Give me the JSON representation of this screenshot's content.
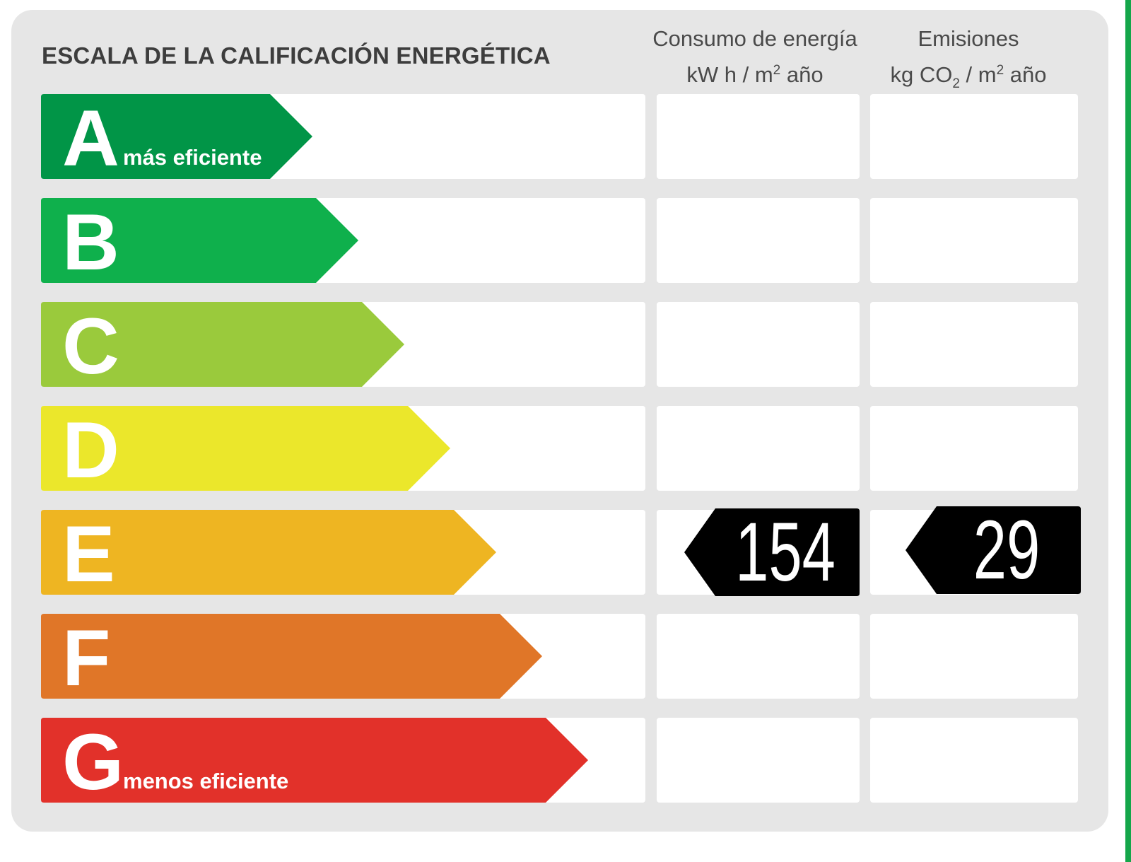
{
  "title": "ESCALA DE LA CALIFICACIÓN ENERGÉTICA",
  "columns": {
    "energy": {
      "line1": "Consumo de energía",
      "unit_pre": "kW h  / m",
      "unit_sup": "2",
      "unit_post": " año"
    },
    "emissions": {
      "line1": "Emisiones",
      "unit_pre": "kg CO",
      "unit_sub": "2",
      "unit_mid": "  / m",
      "unit_sup": "2",
      "unit_post": " año"
    }
  },
  "ratings": [
    {
      "letter": "A",
      "sublabel": "más eficiente",
      "color": "#019547"
    },
    {
      "letter": "B",
      "sublabel": "",
      "color": "#0fb04c"
    },
    {
      "letter": "C",
      "sublabel": "",
      "color": "#9aca3c"
    },
    {
      "letter": "D",
      "sublabel": "",
      "color": "#ebe72b"
    },
    {
      "letter": "E",
      "sublabel": "",
      "color": "#eeb522"
    },
    {
      "letter": "F",
      "sublabel": "",
      "color": "#e07628"
    },
    {
      "letter": "G",
      "sublabel": "menos eficiente",
      "color": "#e2312a"
    }
  ],
  "current": {
    "rating": "E",
    "energy_value": "154",
    "emissions_value": "29"
  },
  "colors": {
    "panel": "#e6e6e6",
    "indicator": "#000000",
    "right_edge": "#14a64a"
  }
}
